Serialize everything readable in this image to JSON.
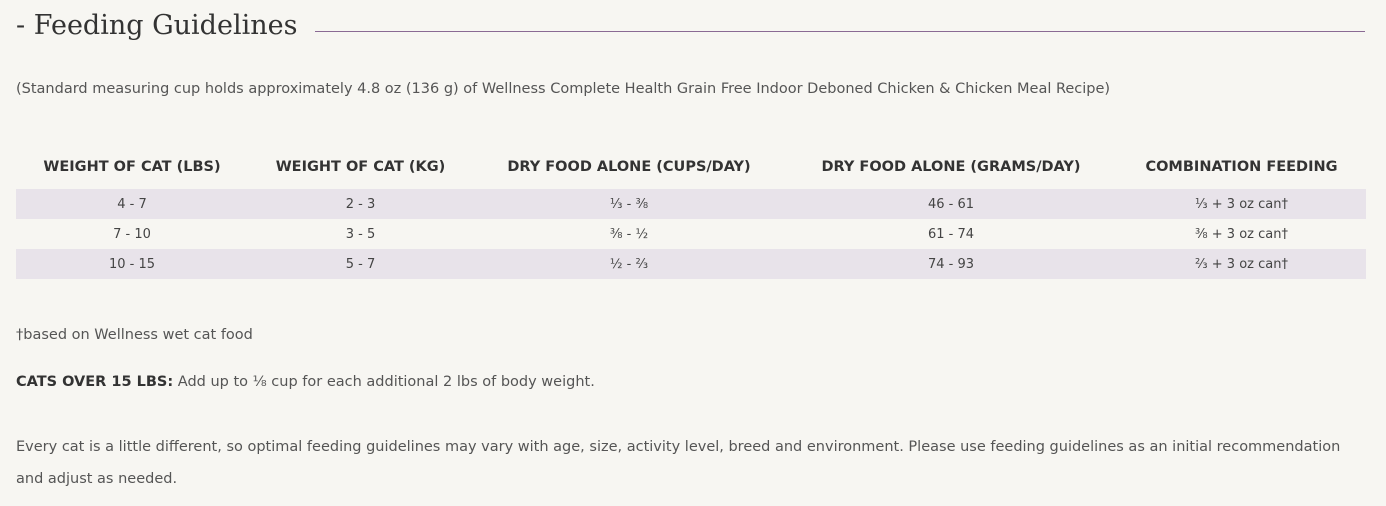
{
  "header": {
    "title": "- Feeding Guidelines"
  },
  "note": "(Standard measuring cup holds approximately 4.8 oz (136 g) of Wellness Complete Health Grain Free Indoor Deboned Chicken & Chicken Meal Recipe)",
  "table": {
    "columns": [
      "WEIGHT OF CAT (LBS)",
      "WEIGHT OF CAT (KG)",
      "DRY FOOD ALONE (CUPS/DAY)",
      "DRY FOOD ALONE (GRAMS/DAY)",
      "COMBINATION FEEDING"
    ],
    "rows": [
      [
        "4 - 7",
        "2 - 3",
        "⅓ - ⅜",
        "46 - 61",
        "⅓ + 3 oz can†"
      ],
      [
        "7 - 10",
        "3 - 5",
        "⅜ - ½",
        "61 - 74",
        "⅜ + 3 oz can†"
      ],
      [
        "10 - 15",
        "5 - 7",
        "½ - ⅔",
        "74 - 93",
        "⅔ + 3 oz can†"
      ]
    ]
  },
  "footnote": "†based on Wellness wet cat food",
  "extra": {
    "label": "CATS OVER 15 LBS:",
    "text": "Add up to ⅛ cup for each additional 2 lbs of body weight."
  },
  "paragraph": "Every cat is a little different, so optimal feeding guidelines may vary with age, size, activity level, breed and environment. Please use feeding guidelines as an initial recommendation and adjust as needed."
}
